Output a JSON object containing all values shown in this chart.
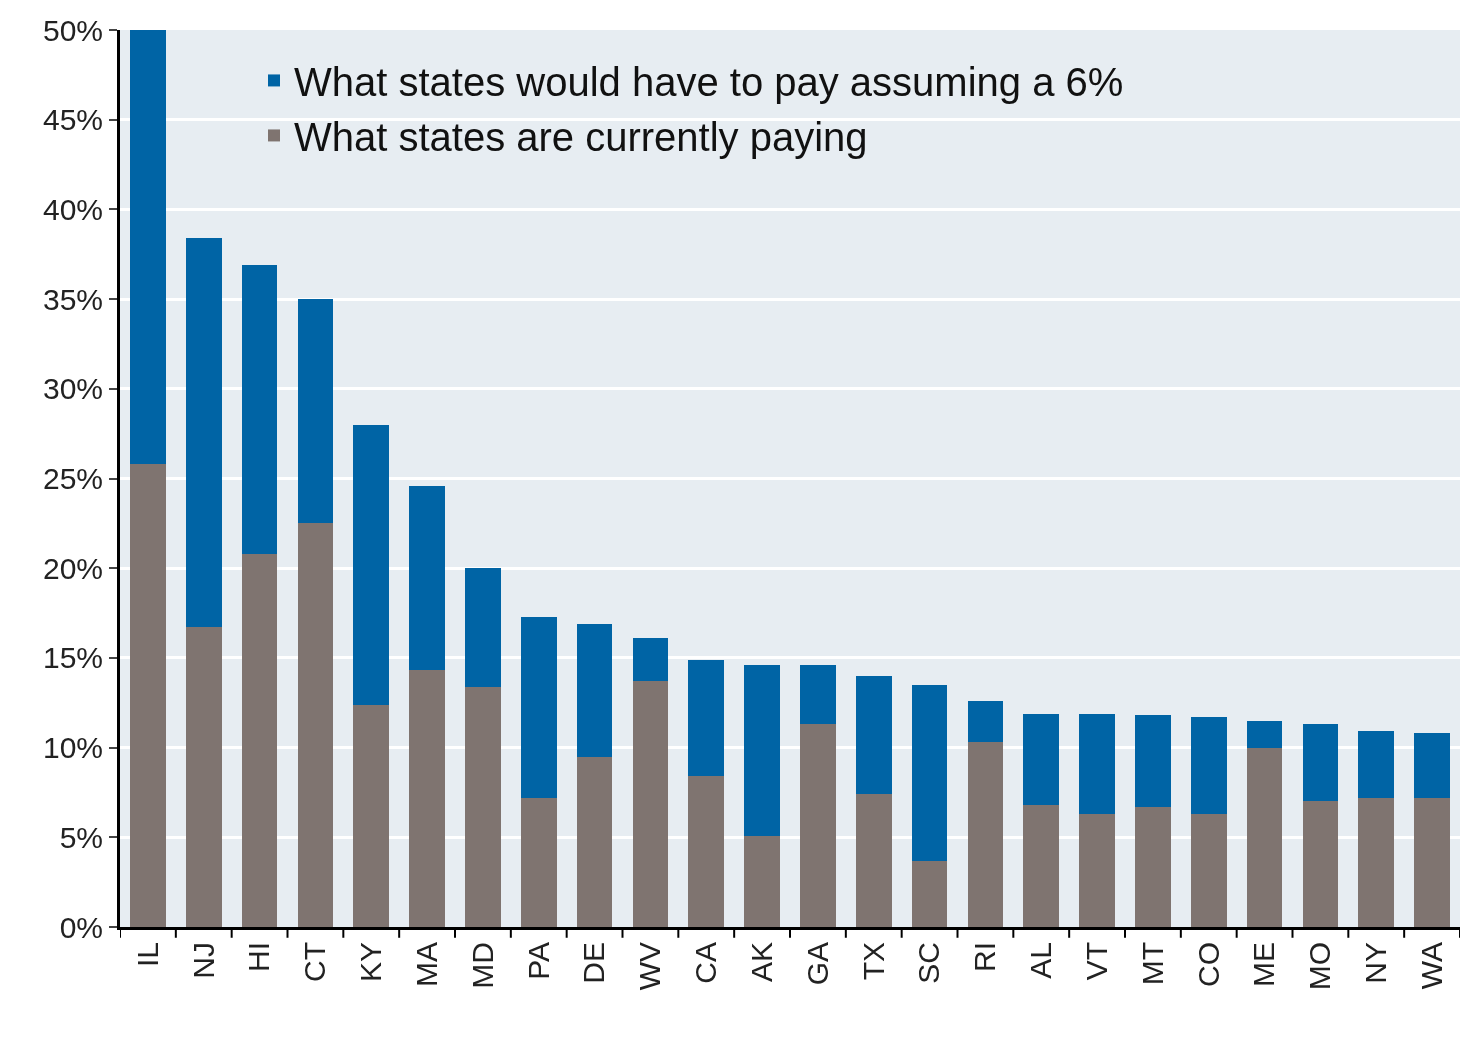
{
  "chart_data": {
    "type": "bar",
    "stacked": true,
    "categories": [
      "IL",
      "NJ",
      "HI",
      "CT",
      "KY",
      "MA",
      "MD",
      "PA",
      "DE",
      "WV",
      "CA",
      "AK",
      "GA",
      "TX",
      "SC",
      "RI",
      "AL",
      "VT",
      "MT",
      "CO",
      "ME",
      "MO",
      "NY",
      "WA"
    ],
    "series": [
      {
        "name": "What states are currently paying",
        "color": "#7f7470",
        "values": [
          25.8,
          16.7,
          20.8,
          22.5,
          12.4,
          14.3,
          13.4,
          7.2,
          9.5,
          13.7,
          8.4,
          5.1,
          11.3,
          7.4,
          3.7,
          10.3,
          6.8,
          6.3,
          6.7,
          6.3,
          10.0,
          7.0,
          7.2,
          7.2
        ]
      },
      {
        "name": "What states would have to pay assuming a 6%",
        "color": "#0064a5",
        "values": [
          24.2,
          21.7,
          16.1,
          12.5,
          15.6,
          10.3,
          6.6,
          10.1,
          7.4,
          2.4,
          6.5,
          9.5,
          3.3,
          6.6,
          9.8,
          2.3,
          5.1,
          5.6,
          5.1,
          5.4,
          1.5,
          4.3,
          3.7,
          3.6
        ]
      }
    ],
    "ylim": [
      0,
      50
    ],
    "yticks": [
      {
        "value": 0,
        "label": "0%"
      },
      {
        "value": 5,
        "label": "5%"
      },
      {
        "value": 10,
        "label": "10%"
      },
      {
        "value": 15,
        "label": "15%"
      },
      {
        "value": 20,
        "label": "20%"
      },
      {
        "value": 25,
        "label": "25%"
      },
      {
        "value": 30,
        "label": "30%"
      },
      {
        "value": 35,
        "label": "35%"
      },
      {
        "value": 40,
        "label": "40%"
      },
      {
        "value": 45,
        "label": "45%"
      },
      {
        "value": 50,
        "label": "50%"
      }
    ],
    "grid": "y",
    "legend": "top left"
  }
}
